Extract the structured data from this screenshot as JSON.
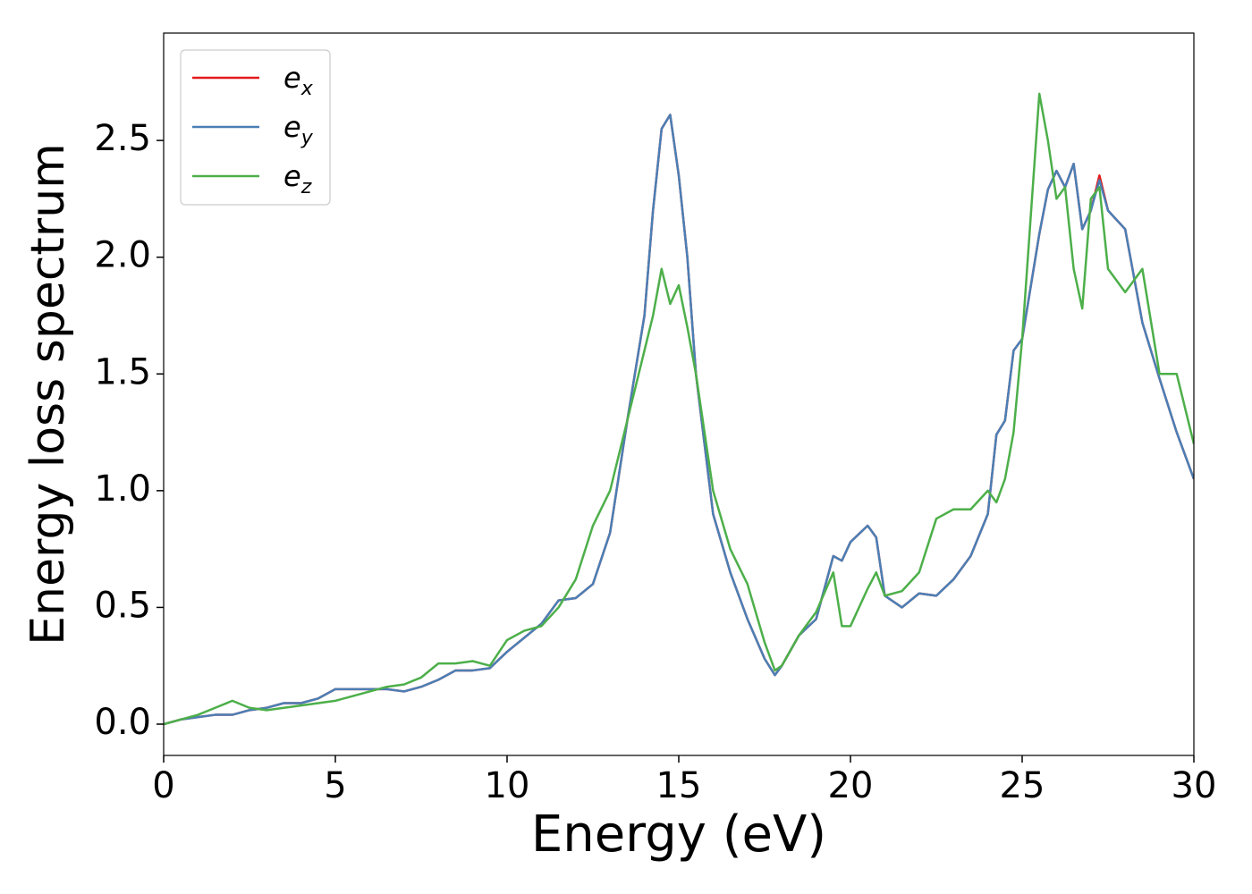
{
  "chart_data": {
    "type": "line",
    "xlabel": "Energy (eV)",
    "ylabel": "Energy loss spectrum",
    "x": [
      0,
      0.5,
      1,
      1.5,
      2,
      2.5,
      3,
      3.5,
      4,
      4.5,
      5,
      5.5,
      6,
      6.5,
      7,
      7.5,
      8,
      8.5,
      9,
      9.5,
      10,
      10.5,
      11,
      11.5,
      12,
      12.5,
      13,
      13.5,
      14,
      14.25,
      14.5,
      14.75,
      15,
      15.25,
      15.5,
      16,
      16.5,
      17,
      17.5,
      17.8,
      18,
      18.5,
      19,
      19.5,
      19.75,
      20,
      20.5,
      20.75,
      21,
      21.5,
      22,
      22.5,
      23,
      23.5,
      24,
      24.25,
      24.5,
      24.75,
      25,
      25.5,
      25.75,
      26,
      26.25,
      26.5,
      26.75,
      27,
      27.25,
      27.5,
      28,
      28.5,
      29,
      29.5,
      30
    ],
    "series": [
      {
        "name": "e_x",
        "color": "#e41a1c",
        "values": [
          0,
          0.02,
          0.03,
          0.04,
          0.04,
          0.06,
          0.07,
          0.09,
          0.09,
          0.11,
          0.15,
          0.15,
          0.15,
          0.15,
          0.14,
          0.16,
          0.19,
          0.23,
          0.23,
          0.24,
          0.31,
          0.37,
          0.43,
          0.53,
          0.54,
          0.6,
          0.82,
          1.3,
          1.75,
          2.2,
          2.55,
          2.61,
          2.35,
          2.0,
          1.5,
          0.9,
          0.65,
          0.45,
          0.28,
          0.21,
          0.25,
          0.38,
          0.45,
          0.72,
          0.7,
          0.78,
          0.85,
          0.8,
          0.55,
          0.5,
          0.56,
          0.55,
          0.62,
          0.72,
          0.9,
          1.24,
          1.3,
          1.6,
          1.65,
          2.1,
          2.29,
          2.37,
          2.3,
          2.4,
          2.12,
          2.2,
          2.35,
          2.2,
          2.12,
          1.72,
          1.48,
          1.25,
          1.05
        ]
      },
      {
        "name": "e_y",
        "color": "#4a7fb5",
        "values": [
          0,
          0.02,
          0.03,
          0.04,
          0.04,
          0.06,
          0.07,
          0.09,
          0.09,
          0.11,
          0.15,
          0.15,
          0.15,
          0.15,
          0.14,
          0.16,
          0.19,
          0.23,
          0.23,
          0.24,
          0.31,
          0.37,
          0.43,
          0.53,
          0.54,
          0.6,
          0.82,
          1.3,
          1.75,
          2.2,
          2.55,
          2.61,
          2.35,
          2.0,
          1.5,
          0.9,
          0.65,
          0.45,
          0.28,
          0.21,
          0.25,
          0.38,
          0.45,
          0.72,
          0.7,
          0.78,
          0.85,
          0.8,
          0.55,
          0.5,
          0.56,
          0.55,
          0.62,
          0.72,
          0.9,
          1.24,
          1.3,
          1.6,
          1.65,
          2.1,
          2.29,
          2.37,
          2.3,
          2.4,
          2.12,
          2.2,
          2.33,
          2.2,
          2.12,
          1.72,
          1.48,
          1.25,
          1.05
        ]
      },
      {
        "name": "e_z",
        "color": "#4daf4a",
        "values": [
          0,
          0.02,
          0.04,
          0.07,
          0.1,
          0.07,
          0.06,
          0.07,
          0.08,
          0.09,
          0.1,
          0.12,
          0.14,
          0.16,
          0.17,
          0.2,
          0.26,
          0.26,
          0.27,
          0.25,
          0.36,
          0.4,
          0.42,
          0.5,
          0.62,
          0.85,
          1.0,
          1.3,
          1.6,
          1.75,
          1.95,
          1.8,
          1.88,
          1.7,
          1.5,
          1.0,
          0.75,
          0.6,
          0.35,
          0.23,
          0.25,
          0.38,
          0.48,
          0.65,
          0.42,
          0.42,
          0.58,
          0.65,
          0.55,
          0.57,
          0.65,
          0.88,
          0.92,
          0.92,
          1.0,
          0.95,
          1.05,
          1.25,
          1.65,
          2.7,
          2.5,
          2.25,
          2.3,
          1.95,
          1.78,
          2.25,
          2.3,
          1.95,
          1.85,
          1.95,
          1.5,
          1.5,
          1.2
        ]
      }
    ],
    "xlim": [
      0,
      30
    ],
    "xticks": [
      0,
      5,
      10,
      15,
      20,
      25,
      30
    ],
    "ylim": [
      -0.134,
      2.96
    ],
    "yticks": [
      {
        "value": 0,
        "label": "0.0"
      },
      {
        "value": 0.5,
        "label": "0.5"
      },
      {
        "value": 1,
        "label": "1.0"
      },
      {
        "value": 1.5,
        "label": "1.5"
      },
      {
        "value": 2,
        "label": "2.0"
      },
      {
        "value": 2.5,
        "label": "2.5"
      }
    ],
    "legend": "upper left",
    "grid": false
  }
}
